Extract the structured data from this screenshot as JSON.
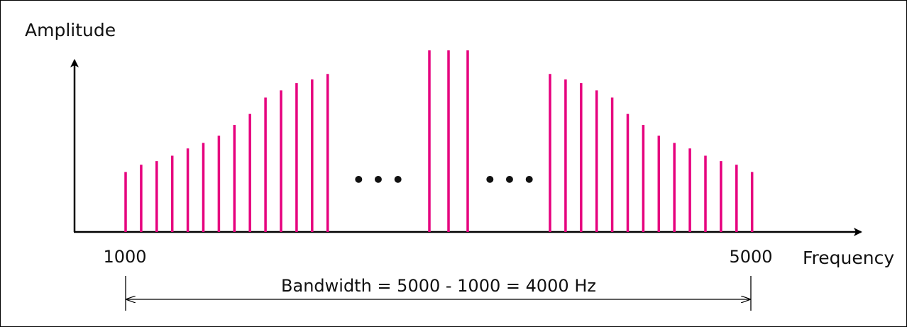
{
  "chart_data": {
    "type": "bar",
    "ylabel": "Amplitude",
    "xlabel": "Frequency",
    "axis_ticks": [
      "1000",
      "5000"
    ],
    "bandwidth_label": "Bandwidth = 5000 - 1000 = 4000 Hz",
    "ellipsis": "• • •",
    "bar_color": "#e6007e",
    "groups": [
      {
        "values": [
          0.33,
          0.37,
          0.39,
          0.42,
          0.46,
          0.49,
          0.53,
          0.59,
          0.65,
          0.74,
          0.78,
          0.82,
          0.84,
          0.87
        ]
      },
      {
        "values": [
          1.0,
          1.0,
          1.0
        ]
      },
      {
        "values": [
          0.87,
          0.84,
          0.82,
          0.78,
          0.74,
          0.65,
          0.59,
          0.53,
          0.49,
          0.46,
          0.42,
          0.39,
          0.37,
          0.33
        ]
      }
    ]
  }
}
